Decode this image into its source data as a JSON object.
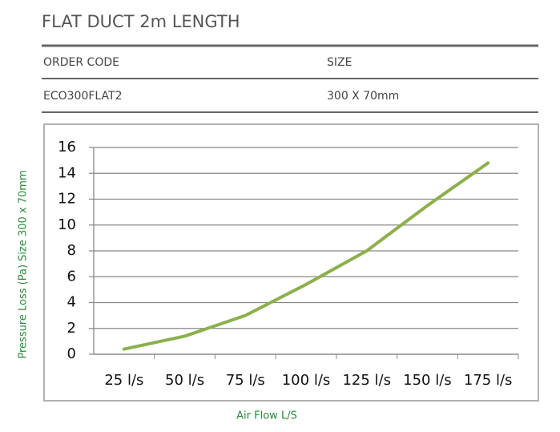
{
  "header": {
    "title": "FLAT DUCT 2m LENGTH"
  },
  "table": {
    "columns": [
      "ORDER CODE",
      "SIZE"
    ],
    "rows": [
      [
        "ECO300FLAT2",
        "300 X 70mm"
      ]
    ]
  },
  "chart_data": {
    "type": "line",
    "categories": [
      "25 l/s",
      "50 l/s",
      "75 l/s",
      "100 l/s",
      "125 l/s",
      "150 l/s",
      "175 l/s"
    ],
    "values": [
      0.4,
      1.4,
      3.0,
      5.4,
      8.0,
      11.5,
      14.8
    ],
    "color": "#8cb04c",
    "ylim": [
      0,
      16
    ],
    "yticks": [
      0,
      2,
      4,
      6,
      8,
      10,
      12,
      14,
      16
    ],
    "grid": true,
    "y_label": "Pressure Loss (Pa) Size 300 x 70mm",
    "x_label": "Air Flow L/S"
  }
}
